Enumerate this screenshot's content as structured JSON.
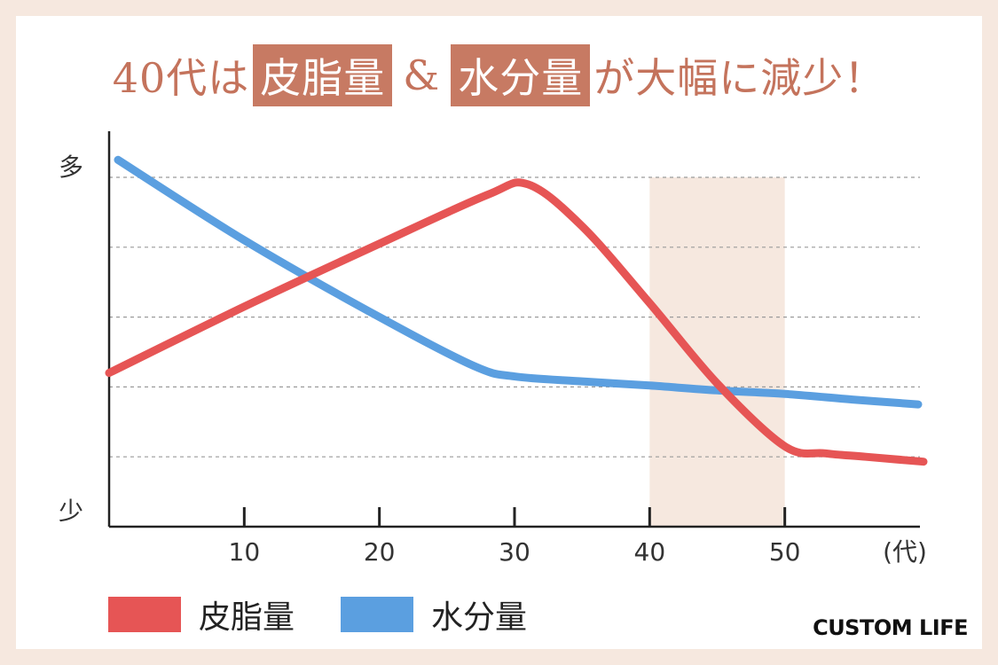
{
  "title": {
    "prefix": "40代は",
    "highlight1": "皮脂量",
    "amp": "&",
    "highlight2": "水分量",
    "suffix": "が大幅に減少！"
  },
  "colors": {
    "sebum": "#e65555",
    "water": "#5b9fe0",
    "highlight_band": "#f6e8df",
    "title": "#c4735c",
    "title_box": "#c77a63"
  },
  "chart_data": {
    "type": "line",
    "y_axis": {
      "top_label": "多",
      "bottom_label": "少",
      "ylim": [
        0,
        5
      ]
    },
    "x_axis": {
      "ticks": [
        10,
        20,
        30,
        40,
        50
      ],
      "tick_labels": [
        "10",
        "20",
        "30",
        "40",
        "50"
      ],
      "unit_label": "(代)",
      "xlim": [
        0,
        60
      ]
    },
    "grid": true,
    "highlight_range": [
      40,
      50
    ],
    "series": [
      {
        "name": "皮脂量",
        "color": "#e65555",
        "x": [
          0,
          10,
          20,
          28,
          31,
          35,
          40,
          45,
          50,
          53,
          56,
          60
        ],
        "y": [
          2.2,
          3.15,
          4.05,
          4.75,
          4.9,
          4.3,
          3.2,
          2.05,
          1.15,
          1.05,
          1.0,
          0.93
        ]
      },
      {
        "name": "水分量",
        "color": "#5b9fe0",
        "x": [
          0,
          10,
          20,
          27,
          30,
          35,
          40,
          45,
          50,
          55,
          60
        ],
        "y": [
          5.25,
          4.1,
          3.0,
          2.3,
          2.15,
          2.08,
          2.02,
          1.95,
          1.9,
          1.82,
          1.75
        ]
      }
    ]
  },
  "legend": [
    {
      "label": "皮脂量",
      "color": "#e65555"
    },
    {
      "label": "水分量",
      "color": "#5b9fe0"
    }
  ],
  "logo": {
    "text": "CUSTOM LIFE"
  }
}
